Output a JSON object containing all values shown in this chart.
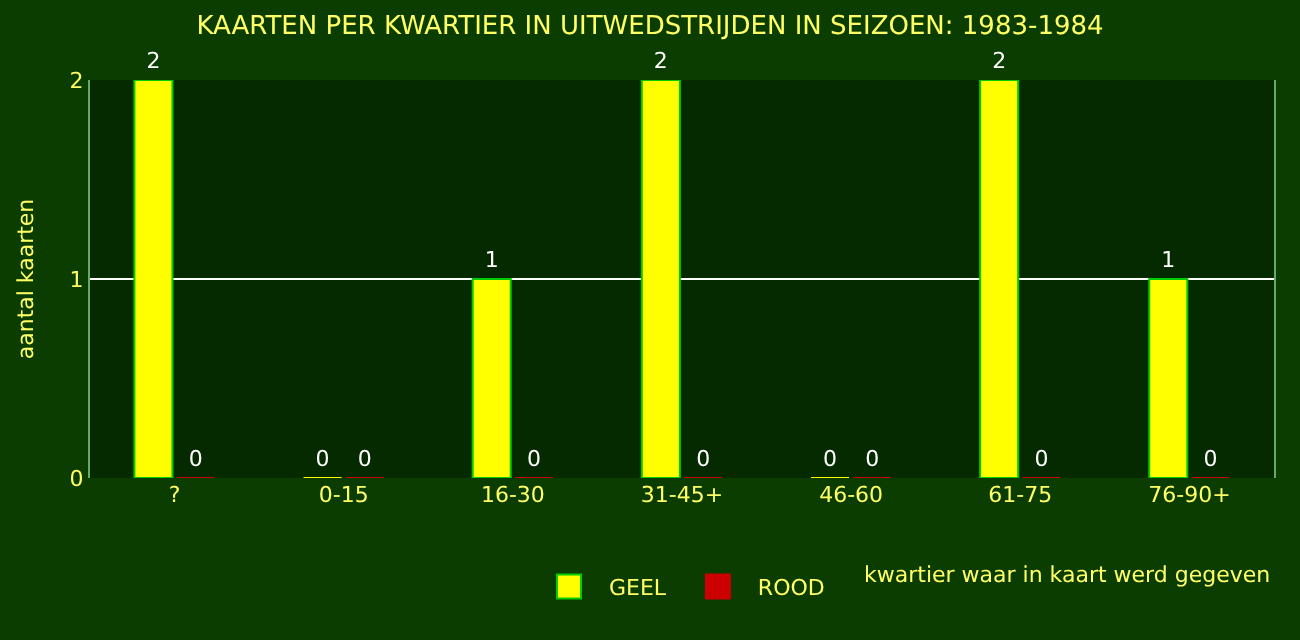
{
  "chart_data": {
    "type": "bar",
    "title": "KAARTEN PER KWARTIER IN UITWEDSTRIJDEN IN SEIZOEN: 1983-1984",
    "xlabel": "kwartier waar in kaart werd gegeven",
    "ylabel": "aantal kaarten",
    "categories": [
      "?",
      "0-15",
      "16-30",
      "31-45+",
      "46-60",
      "61-75",
      "76-90+"
    ],
    "series": [
      {
        "name": "GEEL",
        "color": "#ffff00",
        "values": [
          2,
          0,
          1,
          2,
          0,
          2,
          1
        ]
      },
      {
        "name": "ROOD",
        "color": "#cc0000",
        "values": [
          0,
          0,
          0,
          0,
          0,
          0,
          0
        ]
      }
    ],
    "ylim": [
      0,
      2
    ],
    "yticks": [
      0,
      1,
      2
    ],
    "grid": "y",
    "legend": "bottom",
    "data_labels": true
  }
}
